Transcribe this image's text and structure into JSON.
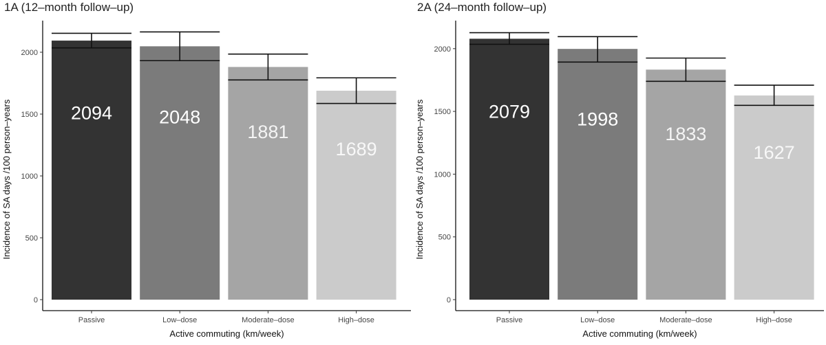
{
  "chart_data": [
    {
      "type": "bar",
      "title": "1A (12–month follow–up)",
      "xlabel": "Active commuting (km/week)",
      "ylabel": "Incidence of SA days /100 person–years",
      "categories": [
        "Passive",
        "Low–dose",
        "Moderate–dose",
        "High–dose"
      ],
      "values": [
        2094,
        2048,
        1881,
        1689
      ],
      "value_labels": [
        "2094",
        "2048",
        "1881",
        "1689"
      ],
      "error_low": [
        2035,
        1932,
        1776,
        1586
      ],
      "error_high": [
        2153,
        2164,
        1985,
        1793
      ],
      "ylim": [
        0,
        2250
      ],
      "yticks": [
        0,
        500,
        1000,
        1500,
        2000
      ],
      "ytick_labels": [
        "0",
        "500",
        "1000",
        "1500",
        "2000"
      ],
      "bar_colors": [
        "#333333",
        "#7b7b7b",
        "#a5a5a5",
        "#cbcbcb"
      ],
      "label_colors": [
        "#ffffff",
        "#ffffff",
        "#f4f4f4",
        "#f8f8f8"
      ],
      "grid": false,
      "legend": "none"
    },
    {
      "type": "bar",
      "title": "2A (24–month follow–up)",
      "xlabel": "Active commuting (km/week)",
      "ylabel": "Incidence of SA days /100 person–years",
      "categories": [
        "Passive",
        "Low–dose",
        "Moderate–dose",
        "High–dose"
      ],
      "values": [
        2079,
        1998,
        1833,
        1627
      ],
      "value_labels": [
        "2079",
        "1998",
        "1833",
        "1627"
      ],
      "error_low": [
        2035,
        1893,
        1740,
        1548
      ],
      "error_high": [
        2127,
        2096,
        1925,
        1709
      ],
      "ylim": [
        0,
        2270
      ],
      "yticks": [
        0,
        500,
        1000,
        1500,
        2000
      ],
      "ytick_labels": [
        "0",
        "500",
        "1000",
        "1500",
        "2000"
      ],
      "bar_colors": [
        "#333333",
        "#7b7b7b",
        "#a5a5a5",
        "#cbcbcb"
      ],
      "label_colors": [
        "#ffffff",
        "#ffffff",
        "#f4f4f4",
        "#f8f8f8"
      ],
      "grid": false,
      "legend": "none"
    }
  ]
}
